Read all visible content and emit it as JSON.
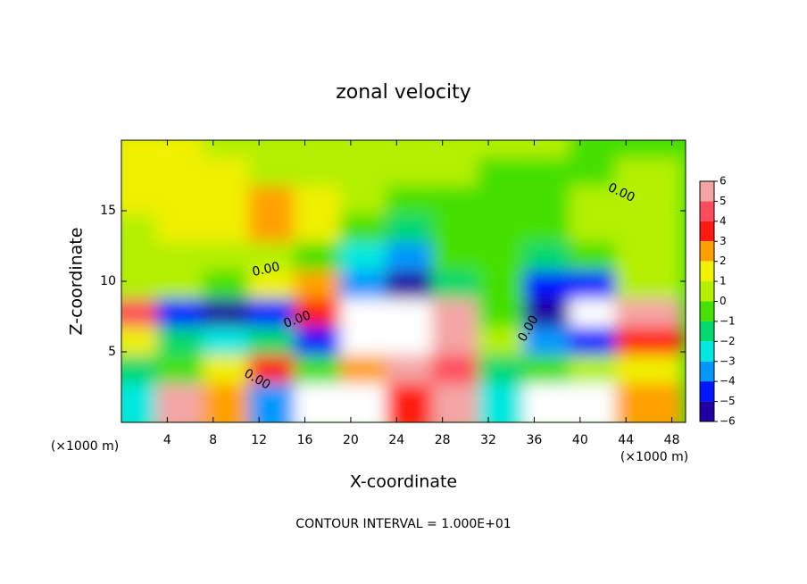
{
  "chart_data": {
    "type": "contour",
    "title": "zonal velocity",
    "x_label": "X-coordinate",
    "y_label": "Z-coordinate",
    "x_unit_label": "(×1000 m)",
    "footnote": "CONTOUR INTERVAL = 1.000E+01",
    "contour_labels": [
      "0.00",
      "0.00",
      "0.00",
      "0.00",
      "0.00"
    ],
    "xlim": [
      0,
      49.2
    ],
    "ylim": [
      0,
      20
    ],
    "xticks": [
      4,
      8,
      12,
      16,
      20,
      24,
      28,
      32,
      36,
      40,
      44,
      48
    ],
    "yticks": [
      5,
      10,
      15
    ],
    "x": [
      2,
      6,
      10,
      14,
      18,
      22,
      26,
      30,
      34,
      38,
      42,
      46
    ],
    "y": [
      19,
      17,
      15,
      13,
      11,
      9,
      7,
      5,
      3,
      1
    ],
    "z": [
      [
        1,
        1,
        0.5,
        0.5,
        0.3,
        0.2,
        0.2,
        0.2,
        0,
        0,
        -0.5,
        -0.5
      ],
      [
        1,
        1.2,
        1,
        0.8,
        0.3,
        0,
        0,
        0,
        -0.2,
        -0.3,
        -0.3,
        0.2
      ],
      [
        1,
        1.5,
        1.5,
        2,
        1,
        0,
        -0.5,
        -0.3,
        -0.3,
        -0.5,
        0,
        0.5
      ],
      [
        0.8,
        1.5,
        1.5,
        2.5,
        1,
        -1,
        -2,
        -0.5,
        -0.5,
        -1,
        0,
        0.5
      ],
      [
        0.5,
        0.8,
        0.5,
        0.2,
        -1,
        -3,
        -4,
        -1,
        -0.5,
        -1.5,
        -1,
        0.5
      ],
      [
        0.8,
        0,
        -1,
        1,
        2,
        -4,
        -6,
        -2,
        -1,
        -5,
        -5,
        0
      ],
      [
        4,
        -5,
        -6,
        -5,
        3,
        -8,
        -9,
        6,
        -1,
        -6,
        -9,
        6
      ],
      [
        1,
        -2,
        -3,
        -2,
        -5,
        -7,
        -7,
        5,
        0,
        -4,
        -5,
        3
      ],
      [
        -2,
        -1,
        1,
        3,
        -1,
        2,
        5,
        4,
        -2,
        -1,
        0,
        1
      ],
      [
        -3,
        5,
        2,
        -4,
        7,
        8,
        3,
        6,
        -3,
        8,
        9,
        2
      ]
    ],
    "colorbar_ticks": [
      6,
      5,
      4,
      3,
      2,
      1,
      0,
      {
        "value": -1,
        "label": "−1"
      },
      {
        "value": -2,
        "label": "−2"
      },
      {
        "value": -3,
        "label": "−3"
      },
      {
        "value": -4,
        "label": "−4"
      },
      {
        "value": -5,
        "label": "−5"
      },
      {
        "value": -6,
        "label": "−6"
      }
    ],
    "colors": [
      "#f4a4a4",
      "#ff4c5c",
      "#ff1a10",
      "#ffa000",
      "#f0f000",
      "#b4f000",
      "#44e000",
      "#00d870",
      "#00e8e0",
      "#0098ff",
      "#0018ff",
      "#2000a0"
    ]
  }
}
